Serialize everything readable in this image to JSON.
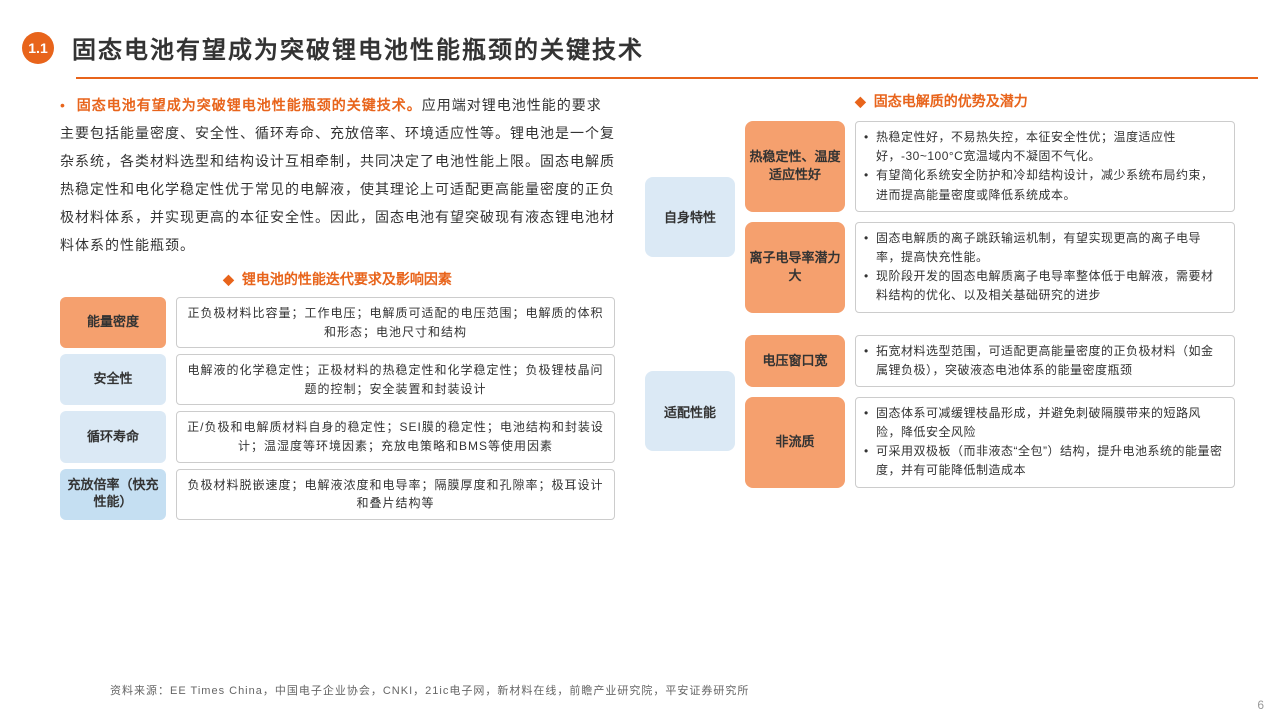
{
  "colors": {
    "accent": "#e8641b",
    "orange_fill": "#f5a06e",
    "blue_light": "#dbe9f5",
    "blue_mid": "#c5dff2",
    "border": "#cccccc",
    "text": "#333333",
    "background": "#ffffff"
  },
  "header": {
    "badge": "1.1",
    "title": "固态电池有望成为突破锂电池性能瓶颈的关键技术"
  },
  "paragraph": {
    "highlight": "固态电池有望成为突破锂电池性能瓶颈的关键技术。",
    "body": "应用端对锂电池性能的要求主要包括能量密度、安全性、循环寿命、充放倍率、环境适应性等。锂电池是一个复杂系统，各类材料选型和结构设计互相牵制，共同决定了电池性能上限。固态电解质热稳定性和电化学稳定性优于常见的电解液，使其理论上可适配更高能量密度的正负极材料体系，并实现更高的本征安全性。因此，固态电池有望突破现有液态锂电池材料体系的性能瓶颈。"
  },
  "left_section": {
    "subtitle": "锂电池的性能迭代要求及影响因素",
    "rows": [
      {
        "label": "能量密度",
        "label_style": "orange",
        "desc": "正负极材料比容量；工作电压；电解质可适配的电压范围；电解质的体积和形态；电池尺寸和结构"
      },
      {
        "label": "安全性",
        "label_style": "blue1",
        "desc": "电解液的化学稳定性；正极材料的热稳定性和化学稳定性；负极锂枝晶问题的控制；安全装置和封装设计"
      },
      {
        "label": "循环寿命",
        "label_style": "blue1",
        "desc": "正/负极和电解质材料自身的稳定性；SEI膜的稳定性；电池结构和封装设计；温湿度等环境因素；充放电策略和BMS等使用因素"
      },
      {
        "label": "充放倍率（快充性能）",
        "label_style": "blue2",
        "desc": "负极材料脱嵌速度；电解液浓度和电导率；隔膜厚度和孔隙率；极耳设计和叠片结构等"
      }
    ]
  },
  "right_section": {
    "subtitle": "固态电解质的优势及潜力",
    "groups": [
      {
        "category": "自身特性",
        "items": [
          {
            "label": "热稳定性、温度适应性好",
            "bullets": [
              "热稳定性好，不易热失控，本征安全性优；温度适应性好，-30~100°C宽温域内不凝固不气化。",
              "有望简化系统安全防护和冷却结构设计，减少系统布局约束，进而提高能量密度或降低系统成本。"
            ]
          },
          {
            "label": "离子电导率潜力大",
            "bullets": [
              "固态电解质的离子跳跃输运机制，有望实现更高的离子电导率，提高快充性能。",
              "现阶段开发的固态电解质离子电导率整体低于电解液，需要材料结构的优化、以及相关基础研究的进步"
            ]
          }
        ]
      },
      {
        "category": "适配性能",
        "items": [
          {
            "label": "电压窗口宽",
            "bullets": [
              "拓宽材料选型范围，可适配更高能量密度的正负极材料（如金属锂负极），突破液态电池体系的能量密度瓶颈"
            ]
          },
          {
            "label": "非流质",
            "bullets": [
              "固态体系可减缓锂枝晶形成，并避免刺破隔膜带来的短路风险，降低安全风险",
              "可采用双极板（而非液态“全包”）结构，提升电池系统的能量密度，并有可能降低制造成本"
            ]
          }
        ]
      }
    ]
  },
  "source": "资料来源：EE Times China，中国电子企业协会，CNKI，21ic电子网，新材料在线，前瞻产业研究院，平安证券研究所",
  "page_number": "6"
}
